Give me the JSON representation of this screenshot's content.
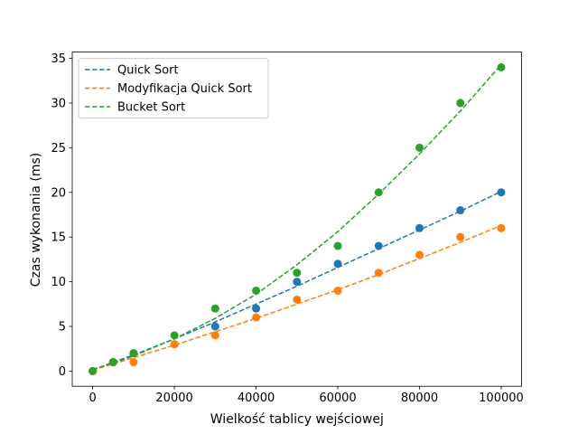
{
  "chart_data": {
    "type": "scatter",
    "title": "",
    "xlabel": "Wielkość tablicy wejściowej",
    "ylabel": "Czas wykonania (ms)",
    "xlim": [
      -5000,
      105000
    ],
    "ylim": [
      -1.7,
      35.7
    ],
    "x_ticks": [
      0,
      20000,
      40000,
      60000,
      80000,
      100000
    ],
    "x_tick_labels": [
      "0",
      "20000",
      "40000",
      "60000",
      "80000",
      "100000"
    ],
    "y_ticks": [
      0,
      5,
      10,
      15,
      20,
      25,
      30,
      35
    ],
    "y_tick_labels": [
      "0",
      "5",
      "10",
      "15",
      "20",
      "25",
      "30",
      "35"
    ],
    "grid": false,
    "legend_position": "top-left",
    "x": [
      0,
      5000,
      10000,
      20000,
      30000,
      40000,
      50000,
      60000,
      70000,
      80000,
      90000,
      100000
    ],
    "series": [
      {
        "name": "Quick Sort",
        "color": "#1f77b4",
        "points": [
          0,
          1,
          2,
          3,
          5,
          7,
          10,
          12,
          14,
          16,
          18,
          20
        ],
        "fit": [
          0.1,
          1.0,
          1.8,
          3.6,
          5.5,
          7.5,
          9.5,
          11.6,
          13.7,
          15.8,
          17.9,
          20.1
        ]
      },
      {
        "name": "Modyfikacja Quick Sort",
        "color": "#ff7f0e",
        "points": [
          0,
          1,
          1,
          3,
          4,
          6,
          8,
          9,
          11,
          13,
          15,
          16
        ],
        "fit": [
          0.1,
          0.8,
          1.5,
          2.9,
          4.4,
          5.9,
          7.5,
          9.1,
          10.8,
          12.6,
          14.4,
          16.3
        ]
      },
      {
        "name": "Bucket Sort",
        "color": "#2ca02c",
        "points": [
          0,
          1,
          2,
          4,
          7,
          9,
          11,
          14,
          20,
          25,
          30,
          34
        ],
        "fit": [
          0.2,
          0.9,
          1.7,
          3.6,
          5.9,
          8.6,
          11.9,
          15.6,
          19.8,
          24.3,
          29.1,
          34.3
        ]
      }
    ]
  }
}
